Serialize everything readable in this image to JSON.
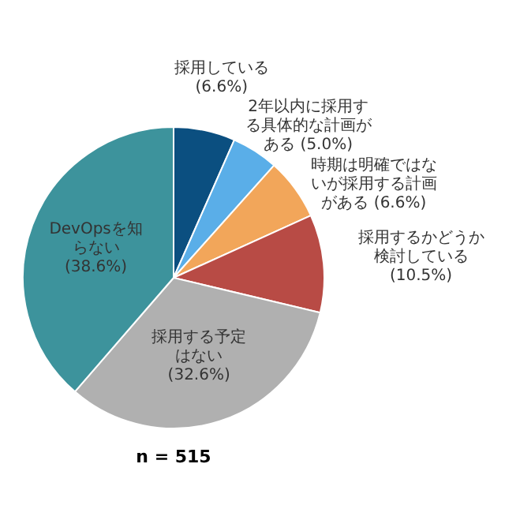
{
  "chart_data": {
    "type": "pie",
    "categories": [
      "採用している",
      "2年以内に採用する具体的な計画がある",
      "時期は明確ではないが採用する計画がある",
      "採用するかどうか検討している",
      "採用する予定はない",
      "DevOpsを知らない"
    ],
    "values": [
      6.6,
      5.0,
      6.6,
      10.5,
      32.6,
      38.6
    ],
    "colors": [
      "#0b4f80",
      "#5aaee8",
      "#f2a65a",
      "#b84b45",
      "#b0b0b0",
      "#3d939c"
    ],
    "value_labels": [
      "(6.6%)",
      "(5.0%)",
      "(6.6%)",
      "(10.5%)",
      "(32.6%)",
      "(38.6%)"
    ],
    "annotations": [
      "n = 515"
    ]
  }
}
